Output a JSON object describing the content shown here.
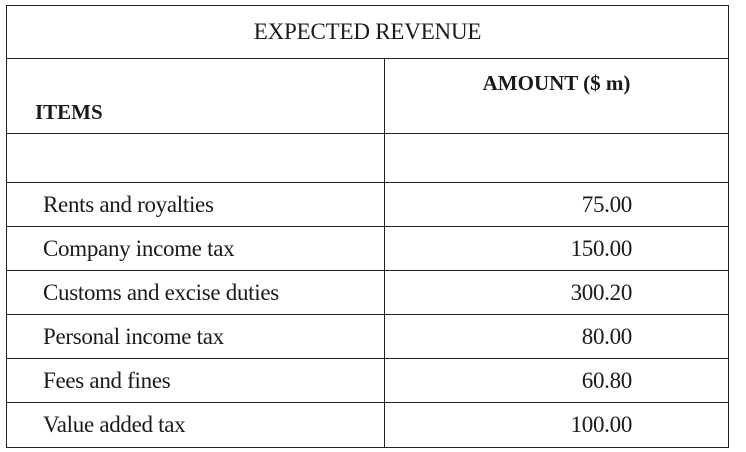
{
  "table": {
    "title": "EXPECTED REVENUE",
    "columns": {
      "items": "ITEMS",
      "amount": "AMOUNT ($ m)"
    },
    "rows": [
      {
        "item": "Rents and royalties",
        "amount": "75.00"
      },
      {
        "item": "Company income tax",
        "amount": "150.00"
      },
      {
        "item": "Customs and excise duties",
        "amount": "300.20"
      },
      {
        "item": "Personal income tax",
        "amount": "80.00"
      },
      {
        "item": "Fees and fines",
        "amount": "60.80"
      },
      {
        "item": "Value added tax",
        "amount": "100.00"
      }
    ]
  }
}
